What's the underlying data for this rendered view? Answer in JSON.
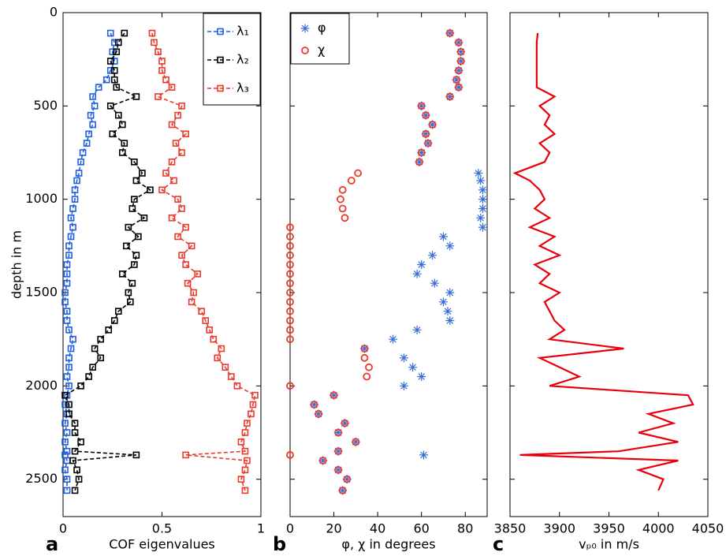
{
  "chart_data": [
    {
      "type": "line",
      "panel_label": "a",
      "x_label": "COF eigenvalues",
      "y_label": "depth in m",
      "xlim": [
        0,
        1
      ],
      "xticks": [
        0,
        0.5,
        1
      ],
      "ylim": [
        0,
        2700
      ],
      "yticks": [
        0,
        500,
        1000,
        1500,
        2000,
        2500
      ],
      "legend": "upper right",
      "line_style": "dashed",
      "marker": "square",
      "y": [
        110,
        160,
        210,
        260,
        310,
        360,
        400,
        450,
        500,
        550,
        600,
        650,
        700,
        750,
        800,
        860,
        900,
        950,
        1000,
        1050,
        1100,
        1150,
        1200,
        1250,
        1300,
        1350,
        1400,
        1450,
        1500,
        1550,
        1600,
        1650,
        1700,
        1750,
        1800,
        1850,
        1900,
        1950,
        2000,
        2050,
        2100,
        2150,
        2200,
        2250,
        2300,
        2350,
        2370,
        2400,
        2450,
        2500,
        2560
      ],
      "series": [
        {
          "name": "λ₁",
          "color": "#1f5fe0",
          "values": [
            0.24,
            0.26,
            0.25,
            0.26,
            0.24,
            0.22,
            0.18,
            0.15,
            0.16,
            0.14,
            0.15,
            0.13,
            0.12,
            0.1,
            0.09,
            0.08,
            0.07,
            0.06,
            0.06,
            0.05,
            0.04,
            0.05,
            0.04,
            0.03,
            0.03,
            0.02,
            0.02,
            0.02,
            0.01,
            0.01,
            0.02,
            0.02,
            0.03,
            0.05,
            0.04,
            0.03,
            0.03,
            0.02,
            0.03,
            0.02,
            0.01,
            0.02,
            0.01,
            0.02,
            0.01,
            0.02,
            0.01,
            0.02,
            0.01,
            0.02,
            0.02
          ]
        },
        {
          "name": "λ₂",
          "color": "#000000",
          "values": [
            0.31,
            0.28,
            0.27,
            0.24,
            0.26,
            0.26,
            0.27,
            0.37,
            0.24,
            0.28,
            0.3,
            0.25,
            0.31,
            0.3,
            0.36,
            0.4,
            0.37,
            0.44,
            0.36,
            0.35,
            0.41,
            0.33,
            0.38,
            0.32,
            0.37,
            0.36,
            0.3,
            0.35,
            0.33,
            0.34,
            0.28,
            0.26,
            0.23,
            0.19,
            0.16,
            0.19,
            0.15,
            0.13,
            0.09,
            0.01,
            0.03,
            0.03,
            0.06,
            0.06,
            0.09,
            0.06,
            0.37,
            0.05,
            0.07,
            0.08,
            0.06
          ]
        },
        {
          "name": "λ₃",
          "color": "#ea3a2c",
          "values": [
            0.45,
            0.46,
            0.48,
            0.5,
            0.5,
            0.52,
            0.55,
            0.48,
            0.6,
            0.58,
            0.55,
            0.62,
            0.57,
            0.6,
            0.55,
            0.52,
            0.56,
            0.5,
            0.58,
            0.6,
            0.55,
            0.62,
            0.58,
            0.65,
            0.6,
            0.62,
            0.68,
            0.63,
            0.66,
            0.65,
            0.7,
            0.72,
            0.74,
            0.76,
            0.8,
            0.78,
            0.82,
            0.85,
            0.88,
            0.97,
            0.96,
            0.95,
            0.93,
            0.92,
            0.9,
            0.92,
            0.62,
            0.93,
            0.92,
            0.9,
            0.92
          ]
        }
      ]
    },
    {
      "type": "scatter",
      "panel_label": "b",
      "x_label": "φ, χ in degrees",
      "xlim": [
        0,
        90
      ],
      "xticks": [
        0,
        20,
        40,
        60,
        80
      ],
      "legend": "upper left",
      "series": [
        {
          "name": "φ",
          "color": "#3a6fd8",
          "marker": "asterisk",
          "values": [
            73,
            77,
            78,
            78,
            77,
            76,
            77,
            73,
            60,
            62,
            65,
            62,
            63,
            60,
            59,
            86,
            87,
            88,
            88,
            88,
            87,
            88,
            70,
            73,
            65,
            60,
            58,
            66,
            73,
            70,
            72,
            73,
            58,
            47,
            34,
            52,
            56,
            60,
            52,
            20,
            11,
            13,
            25,
            22,
            30,
            22,
            61,
            15,
            22,
            26,
            24
          ]
        },
        {
          "name": "χ",
          "color": "#ea3a2c",
          "marker": "circle",
          "values": [
            73,
            77,
            78,
            78,
            77,
            76,
            77,
            73,
            60,
            62,
            65,
            62,
            63,
            60,
            59,
            31,
            28,
            24,
            23,
            24,
            25,
            0,
            0,
            0,
            0,
            0,
            0,
            0,
            0,
            0,
            0,
            0,
            0,
            0,
            34,
            34,
            36,
            35,
            0,
            20,
            11,
            13,
            25,
            22,
            30,
            22,
            0,
            15,
            22,
            26,
            24
          ]
        }
      ]
    },
    {
      "type": "line",
      "panel_label": "c",
      "x_label": "vₚ₀ in m/s",
      "xlim": [
        3850,
        4050
      ],
      "xticks": [
        3850,
        3900,
        3950,
        4000,
        4050
      ],
      "line_style": "solid",
      "series": [
        {
          "color": "#e8000b",
          "values": [
            3878,
            3877,
            3877,
            3877,
            3877,
            3877,
            3877,
            3895,
            3880,
            3890,
            3885,
            3895,
            3880,
            3890,
            3885,
            3855,
            3870,
            3880,
            3885,
            3875,
            3890,
            3870,
            3895,
            3880,
            3900,
            3875,
            3890,
            3880,
            3900,
            3885,
            3890,
            3895,
            3905,
            3890,
            3965,
            3880,
            3900,
            3920,
            3890,
            4030,
            4035,
            3990,
            4015,
            3980,
            4020,
            3960,
            3860,
            4020,
            3980,
            4005,
            4000
          ]
        }
      ]
    }
  ]
}
